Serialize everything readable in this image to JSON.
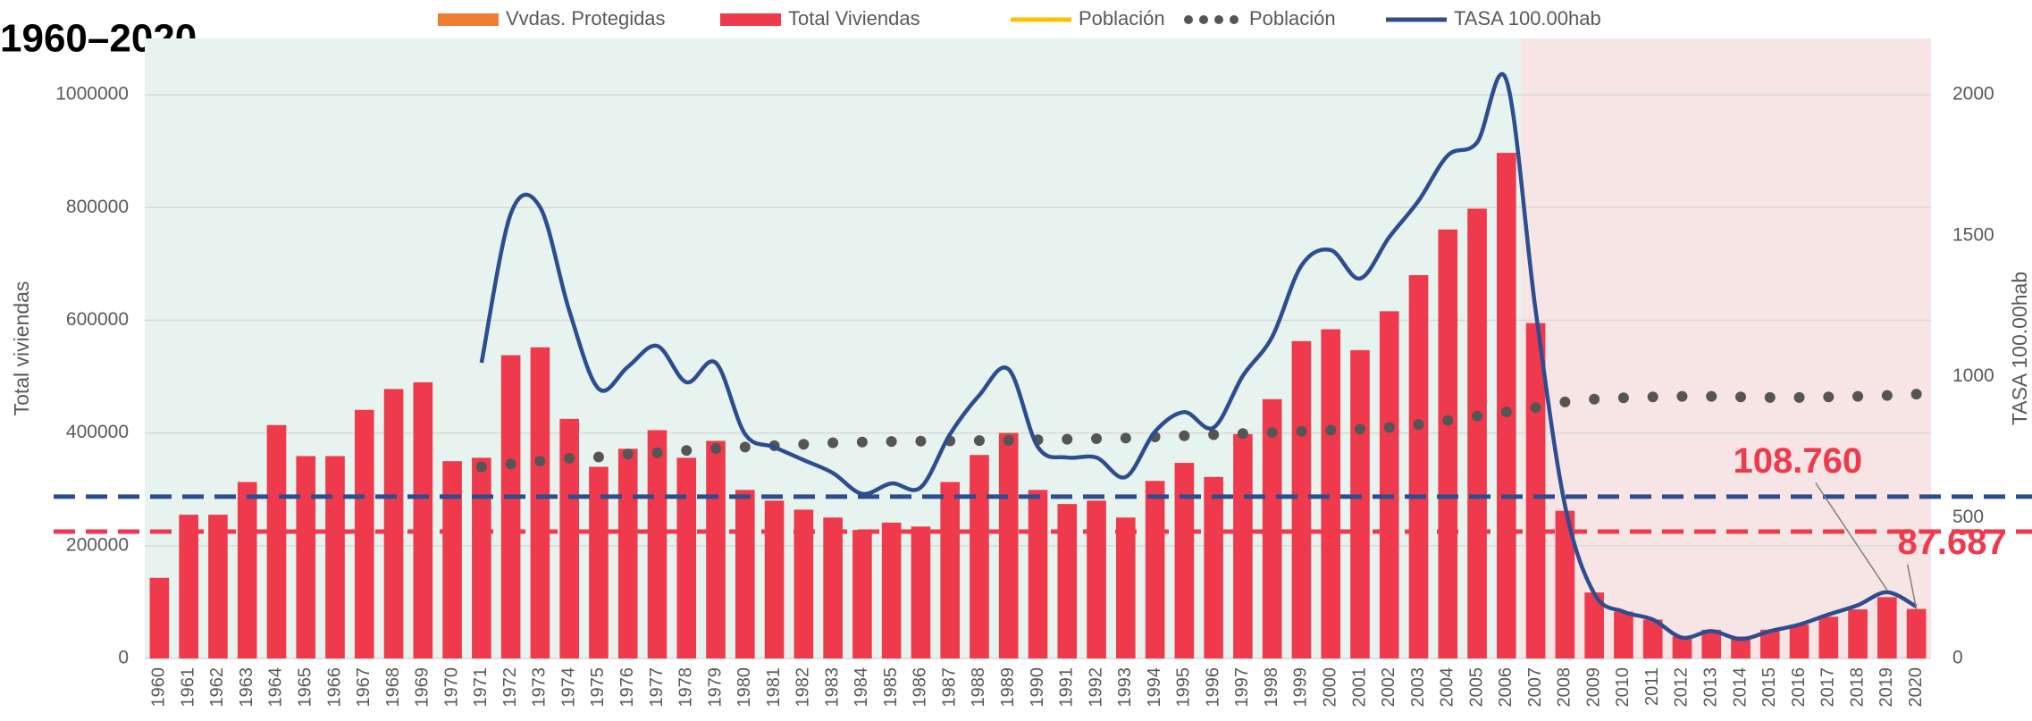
{
  "chart_data": {
    "type": "bar",
    "title": "1960–2020",
    "y_label": "Total viviendas",
    "y2_label": "TASA 100.00hab",
    "categories": [
      "1960",
      "1961",
      "1962",
      "1963",
      "1964",
      "1965",
      "1966",
      "1967",
      "1968",
      "1969",
      "1970",
      "1971",
      "1972",
      "1973",
      "1974",
      "1975",
      "1976",
      "1977",
      "1978",
      "1979",
      "1980",
      "1981",
      "1982",
      "1983",
      "1984",
      "1985",
      "1986",
      "1987",
      "1988",
      "1989",
      "1990",
      "1991",
      "1992",
      "1993",
      "1994",
      "1995",
      "1996",
      "1997",
      "1998",
      "1999",
      "2000",
      "2001",
      "2002",
      "2003",
      "2004",
      "2005",
      "2006",
      "2007",
      "2008",
      "2009",
      "2010",
      "2011",
      "2012",
      "2013",
      "2014",
      "2015",
      "2016",
      "2017",
      "2018",
      "2019",
      "2020"
    ],
    "ylim": [
      0,
      1100000
    ],
    "yticks": [
      0,
      200000,
      400000,
      600000,
      800000,
      1000000
    ],
    "y2lim": [
      0,
      2200
    ],
    "y2ticks": [
      0,
      500,
      1000,
      1500,
      2000
    ],
    "grid": true,
    "legend": "top",
    "regions": [
      {
        "start": 0,
        "end": 46,
        "color": "#e6f3ef"
      },
      {
        "start": 47,
        "end": 60,
        "color": "#f7e4e4"
      }
    ],
    "reference_lines": [
      {
        "value": 287000,
        "color": "#2e4d8e"
      },
      {
        "value": 225000,
        "color": "#ee3a4c"
      }
    ],
    "series": [
      {
        "name": "Vvdas. Protegidas",
        "type": "bar",
        "color": "#ed7d31",
        "values": [
          null,
          null,
          null,
          null,
          null,
          null,
          null,
          null,
          null,
          null,
          null,
          null,
          null,
          null,
          null,
          null,
          null,
          null,
          null,
          null,
          null,
          null,
          null,
          null,
          null,
          null,
          null,
          null,
          null,
          null,
          null,
          null,
          null,
          null,
          null,
          null,
          null,
          null,
          null,
          null,
          null,
          null,
          null,
          null,
          null,
          null,
          null,
          null,
          null,
          null,
          null,
          null,
          null,
          null,
          null,
          null,
          null,
          null,
          null,
          null,
          null
        ]
      },
      {
        "name": "Total Viviendas",
        "type": "bar",
        "color": "#ee3a4c",
        "values": [
          143000,
          255000,
          255000,
          313000,
          414000,
          359000,
          359000,
          441000,
          478000,
          490000,
          350000,
          356000,
          538000,
          552000,
          425000,
          340000,
          372000,
          405000,
          356000,
          386000,
          299000,
          280000,
          264000,
          250000,
          228000,
          241000,
          234000,
          313000,
          361000,
          400000,
          299000,
          274000,
          280000,
          250000,
          315000,
          347000,
          322000,
          398000,
          460000,
          563000,
          584000,
          547000,
          616000,
          680000,
          761000,
          798000,
          897000,
          595000,
          262000,
          117000,
          83000,
          69000,
          39000,
          51000,
          39000,
          51000,
          60000,
          74000,
          87000,
          108760,
          87687
        ],
        "value_labels": [
          null,
          null,
          null,
          null,
          null,
          null,
          null,
          null,
          null,
          null,
          null,
          null,
          null,
          null,
          null,
          null,
          null,
          null,
          null,
          null,
          null,
          null,
          null,
          null,
          null,
          null,
          null,
          null,
          null,
          null,
          null,
          null,
          null,
          null,
          null,
          null,
          null,
          null,
          null,
          null,
          null,
          null,
          null,
          null,
          null,
          null,
          null,
          null,
          null,
          null,
          null,
          null,
          null,
          null,
          null,
          null,
          null,
          null,
          null,
          "108.760",
          "87.687"
        ]
      },
      {
        "name": "Población",
        "type": "line",
        "color": "#ffc000",
        "values": [
          null,
          null,
          null,
          null,
          null,
          null,
          null,
          null,
          null,
          null,
          null,
          null,
          null,
          null,
          null,
          null,
          null,
          null,
          null,
          null,
          null,
          null,
          null,
          null,
          null,
          null,
          null,
          null,
          null,
          null,
          null,
          null,
          null,
          null,
          null,
          null,
          null,
          null,
          null,
          null,
          null,
          null,
          null,
          null,
          null,
          null,
          null,
          null,
          null,
          null,
          null,
          null,
          null,
          null,
          null,
          null,
          null,
          null,
          null,
          null,
          null
        ]
      },
      {
        "name": "Población",
        "type": "dots",
        "color": "#555555",
        "axis": "y2",
        "values": [
          null,
          null,
          null,
          null,
          null,
          null,
          null,
          null,
          null,
          null,
          null,
          680,
          690,
          700,
          710,
          715,
          725,
          730,
          738,
          745,
          750,
          755,
          760,
          765,
          768,
          770,
          771,
          772,
          773,
          774,
          776,
          778,
          780,
          782,
          786,
          790,
          794,
          798,
          802,
          806,
          810,
          814,
          820,
          830,
          845,
          860,
          875,
          890,
          910,
          920,
          925,
          928,
          930,
          930,
          928,
          926,
          926,
          928,
          930,
          933,
          938
        ]
      },
      {
        "name": "TASA 100.00hab",
        "type": "line",
        "color": "#2e4d8e",
        "axis": "y2",
        "values": [
          null,
          null,
          null,
          null,
          null,
          null,
          null,
          null,
          null,
          null,
          null,
          1049,
          1578,
          1601,
          1233,
          957,
          1035,
          1109,
          980,
          1049,
          796,
          750,
          704,
          658,
          584,
          621,
          607,
          796,
          934,
          1026,
          750,
          713,
          713,
          644,
          805,
          874,
          819,
          1003,
          1141,
          1394,
          1449,
          1348,
          1495,
          1624,
          1785,
          1831,
          2052,
          1233,
          543,
          230,
          166,
          138,
          74,
          97,
          69,
          97,
          120,
          156,
          189,
          235,
          184
        ]
      }
    ]
  }
}
